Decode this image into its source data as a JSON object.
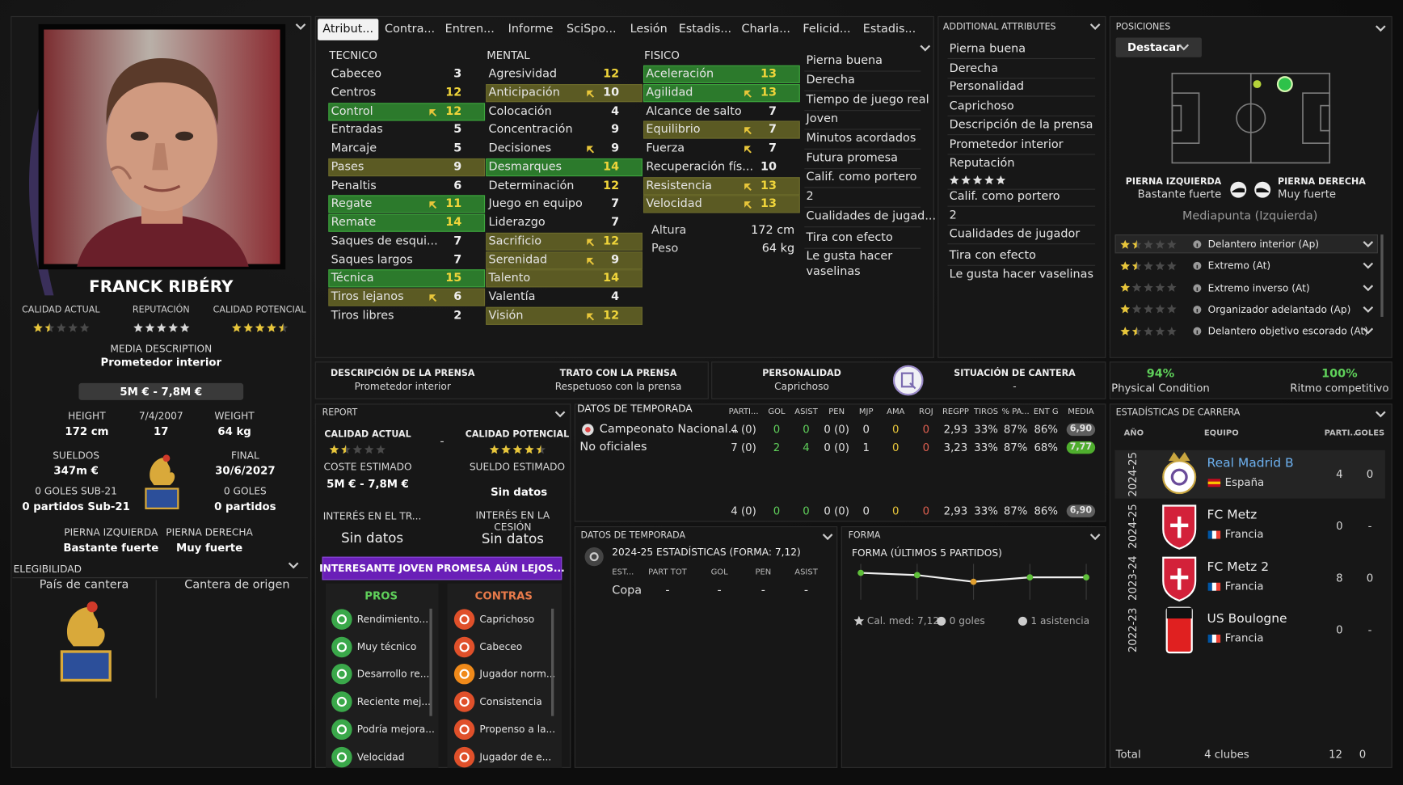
{
  "profile": {
    "name": "FRANCK RIBÉRY",
    "ratings": [
      {
        "label": "CALIDAD ACTUAL",
        "stars": 1.5
      },
      {
        "label": "REPUTACIÓN",
        "stars": 5
      },
      {
        "label": "CALIDAD POTENCIAL",
        "stars": 4.5
      }
    ],
    "media_description": {
      "label": "MEDIA DESCRIPTION",
      "value": "Prometedor interior"
    },
    "value_range": "5M € - 7,8M €",
    "facts": [
      {
        "label": "HEIGHT",
        "value": "172 cm"
      },
      {
        "label": "7/4/2007",
        "value": "17"
      },
      {
        "label": "WEIGHT",
        "value": "64 kg"
      },
      {
        "label": "SUELDOS",
        "value": "347m €"
      },
      {
        "label": "FINAL",
        "value": "30/6/2027"
      },
      {
        "label": "0 GOLES SUB-21",
        "value": "0 partidos Sub-21"
      },
      {
        "label": "0 GOLES",
        "value": "0 partidos"
      },
      {
        "label": "PIERNA IZQUIERDA",
        "value": "Bastante fuerte"
      },
      {
        "label": "PIERNA DERECHA",
        "value": "Muy fuerte"
      }
    ],
    "eligibility": {
      "title": "ELEGIBILIDAD",
      "columns": [
        "País de cantera",
        "Cantera de origen"
      ]
    }
  },
  "tabs": [
    "Atribut...",
    "Contra...",
    "Entren...",
    "Informe",
    "SciSpo...",
    "Lesión",
    "Estadis...",
    "Charla...",
    "Felicid...",
    "Estadis..."
  ],
  "attributes": {
    "groups": [
      {
        "title": "TECNICO",
        "items": [
          {
            "name": "Cabeceo",
            "value": 3
          },
          {
            "name": "Centros",
            "value": 12
          },
          {
            "name": "Control",
            "value": 12,
            "highlight": "green",
            "arrow": true
          },
          {
            "name": "Entradas",
            "value": 5
          },
          {
            "name": "Marcaje",
            "value": 5
          },
          {
            "name": "Pases",
            "value": 9,
            "highlight": "olive"
          },
          {
            "name": "Penaltis",
            "value": 6
          },
          {
            "name": "Regate",
            "value": 11,
            "highlight": "green",
            "arrow": true
          },
          {
            "name": "Remate",
            "value": 14,
            "highlight": "green"
          },
          {
            "name": "Saques de esqui...",
            "value": 7
          },
          {
            "name": "Saques largos",
            "value": 7
          },
          {
            "name": "Técnica",
            "value": 15,
            "highlight": "green"
          },
          {
            "name": "Tiros lejanos",
            "value": 6,
            "highlight": "olive",
            "arrow": true
          },
          {
            "name": "Tiros libres",
            "value": 2
          }
        ]
      },
      {
        "title": "MENTAL",
        "items": [
          {
            "name": "Agresividad",
            "value": 12
          },
          {
            "name": "Anticipación",
            "value": 10,
            "highlight": "olive",
            "arrow": true
          },
          {
            "name": "Colocación",
            "value": 4
          },
          {
            "name": "Concentración",
            "value": 9
          },
          {
            "name": "Decisiones",
            "value": 9,
            "arrow": true
          },
          {
            "name": "Desmarques",
            "value": 14,
            "highlight": "green"
          },
          {
            "name": "Determinación",
            "value": 12
          },
          {
            "name": "Juego en equipo",
            "value": 7
          },
          {
            "name": "Liderazgo",
            "value": 7
          },
          {
            "name": "Sacrificio",
            "value": 12,
            "highlight": "olive",
            "arrow": true
          },
          {
            "name": "Serenidad",
            "value": 9,
            "highlight": "olive",
            "arrow": true
          },
          {
            "name": "Talento",
            "value": 14,
            "highlight": "olive"
          },
          {
            "name": "Valentía",
            "value": 4
          },
          {
            "name": "Visión",
            "value": 12,
            "highlight": "olive",
            "arrow": true
          }
        ]
      },
      {
        "title": "FISICO",
        "items": [
          {
            "name": "Aceleración",
            "value": 13,
            "highlight": "green"
          },
          {
            "name": "Agilidad",
            "value": 13,
            "highlight": "green",
            "arrow": true
          },
          {
            "name": "Alcance de salto",
            "value": 7
          },
          {
            "name": "Equilibrio",
            "value": 7,
            "highlight": "olive",
            "arrow": true
          },
          {
            "name": "Fuerza",
            "value": 7,
            "arrow": true
          },
          {
            "name": "Recuperación fís...",
            "value": 10
          },
          {
            "name": "Resistencia",
            "value": 13,
            "highlight": "olive",
            "arrow": true
          },
          {
            "name": "Velocidad",
            "value": 13,
            "highlight": "olive",
            "arrow": true
          }
        ]
      }
    ],
    "physical": [
      {
        "label": "Altura",
        "value": "172 cm"
      },
      {
        "label": "Peso",
        "value": "64 kg"
      }
    ],
    "notes": [
      "Pierna buena",
      "Derecha",
      "Tiempo de juego real",
      "Joven",
      "Minutos acordados",
      "Futura promesa",
      "Calif. como portero",
      "2",
      "Cualidades de jugad...",
      "Tira con efecto",
      "Le gusta hacer vaselinas"
    ]
  },
  "additional": {
    "title": "ADDITIONAL ATTRIBUTES",
    "items": [
      "Pierna buena",
      "Derecha",
      "Personalidad",
      "Caprichoso",
      "Descripción de la prensa",
      "Prometedor interior",
      "Reputación",
      {
        "stars": 5
      },
      "Calif. como portero",
      "2",
      "Cualidades de jugador",
      "Tira con efecto",
      "Le gusta hacer vaselinas"
    ]
  },
  "positions": {
    "title": "POSICIONES",
    "button": "Destacar",
    "feet": [
      {
        "label": "PIERNA IZQUIERDA",
        "value": "Bastante fuerte"
      },
      {
        "label": "PIERNA DERECHA",
        "value": "Muy fuerte"
      }
    ],
    "position": "Mediapunta (Izquierda)",
    "roles": [
      {
        "name": "Delantero interior (Ap)",
        "stars": 1.5,
        "selected": true
      },
      {
        "name": "Extremo (At)",
        "stars": 1.5
      },
      {
        "name": "Extremo inverso (At)",
        "stars": 1
      },
      {
        "name": "Organizador adelantado (Ap)",
        "stars": 1
      },
      {
        "name": "Delantero objetivo escorado (At)",
        "stars": 1.5
      }
    ]
  },
  "strip": [
    {
      "label": "DESCRIPCIÓN DE LA PRENSA",
      "value": "Prometedor interior"
    },
    {
      "label": "TRATO CON LA PRENSA",
      "value": "Respetuoso con la prensa"
    },
    {
      "label": "PERSONALIDAD",
      "value": "Caprichoso"
    },
    {
      "label": "SITUACIÓN DE CANTERA",
      "value": "-"
    }
  ],
  "condition": [
    {
      "value": "94%",
      "label": "Physical Condition"
    },
    {
      "value": "100%",
      "label": "Ritmo competitivo"
    }
  ],
  "report": {
    "title": "REPORT",
    "current": {
      "label": "CALIDAD ACTUAL",
      "stars": 1.5
    },
    "separator": "-",
    "potential": {
      "label": "CALIDAD POTENCIAL",
      "stars": 4.5
    },
    "cost": {
      "label": "COSTE ESTIMADO",
      "value": "5M € - 7,8M €"
    },
    "wage": {
      "label": "SUELDO ESTIMADO",
      "value": "Sin datos"
    },
    "transfer_interest": {
      "label": "INTERÉS EN EL TR...",
      "value": "Sin datos"
    },
    "loan_interest": {
      "label": "INTERÉS EN LA CESIÓN",
      "value": "Sin datos"
    },
    "banner": "INTERESANTE JOVEN PROMESA AÚN LEJOS...",
    "pros": {
      "title": "PROS",
      "items": [
        "Rendimiento...",
        "Muy técnico",
        "Desarrollo re...",
        "Reciente mej...",
        "Podría mejora...",
        "Velocidad"
      ]
    },
    "cons": {
      "title": "CONTRAS",
      "items": [
        "Caprichoso",
        "Cabeceo",
        "Jugador norm...",
        "Consistencia",
        "Propenso a la...",
        "Jugador de e..."
      ]
    }
  },
  "season": {
    "title": "DATOS DE TEMPORADA",
    "columns": [
      "PARTI...",
      "GOL",
      "ASIST",
      "PEN",
      "MJP",
      "AMA",
      "ROJ",
      "REGPP",
      "TIROS",
      "% PA...",
      "ENT G",
      "MEDIA"
    ],
    "rows": [
      {
        "name": "Campeonato Nacional...",
        "values": [
          "4 (0)",
          "0",
          "0",
          "0 (0)",
          "0",
          "0",
          "0",
          "2,93",
          "33%",
          "87%",
          "86%",
          "6,90"
        ],
        "rating_color": "#5e5e5e"
      },
      {
        "name": "No oficiales",
        "values": [
          "7 (0)",
          "2",
          "4",
          "0 (0)",
          "1",
          "0",
          "0",
          "3,23",
          "33%",
          "87%",
          "68%",
          "7,77"
        ],
        "rating_color": "#4fae2e"
      }
    ],
    "total": {
      "values": [
        "4 (0)",
        "0",
        "0",
        "0 (0)",
        "0",
        "0",
        "0",
        "2,93",
        "33%",
        "87%",
        "86%",
        "6,90"
      ],
      "rating_color": "#5e5e5e"
    }
  },
  "season_small": {
    "title": "DATOS DE TEMPORADA",
    "subtitle": "2024-25 ESTADÍSTICAS (FORMA: 7,12)",
    "columns": [
      "EST...",
      "PART TOT",
      "GOL",
      "PEN",
      "ASIST"
    ],
    "rows": [
      [
        "Copa",
        "-",
        "-",
        "-",
        "-"
      ]
    ]
  },
  "form": {
    "type": "line",
    "title": "FORMA",
    "subtitle": "FORMA (ÚLTIMOS 5 PARTIDOS)",
    "values": [
      7.3,
      7.2,
      6.9,
      7.1,
      7.1
    ],
    "footer": [
      "Cal. med: 7,12",
      "0 goles",
      "1 asistencia"
    ]
  },
  "career": {
    "title": "ESTADÍSTICAS DE CARRERA",
    "columns": [
      "AÑO",
      "EQUIPO",
      "PARTI...",
      "GOLES"
    ],
    "rows": [
      {
        "year": "2024-25",
        "club": "Real Madrid B",
        "country": "España",
        "apps": "4",
        "goals": "0",
        "highlight": true,
        "badge": "#ffffff",
        "flag": {
          "stripes": "h",
          "colors": [
            "#c60b1e",
            "#ffc400",
            "#c60b1e"
          ]
        }
      },
      {
        "year": "2024-25",
        "club": "FC Metz",
        "country": "Francia",
        "apps": "0",
        "goals": "-",
        "badge": "#d3213a",
        "flag": {
          "stripes": "v",
          "colors": [
            "#0055a4",
            "#ffffff",
            "#ef4135"
          ]
        }
      },
      {
        "year": "2023-24",
        "club": "FC Metz 2",
        "country": "Francia",
        "apps": "8",
        "goals": "0",
        "badge": "#d3213a",
        "flag": {
          "stripes": "v",
          "colors": [
            "#0055a4",
            "#ffffff",
            "#ef4135"
          ]
        }
      },
      {
        "year": "2022-23",
        "club": "US Boulogne",
        "country": "Francia",
        "apps": "0",
        "goals": "-",
        "badge": "#e02020",
        "flag": {
          "stripes": "v",
          "colors": [
            "#0055a4",
            "#ffffff",
            "#ef4135"
          ]
        }
      }
    ],
    "total": [
      "Total",
      "4 clubes",
      "12",
      "0"
    ]
  }
}
